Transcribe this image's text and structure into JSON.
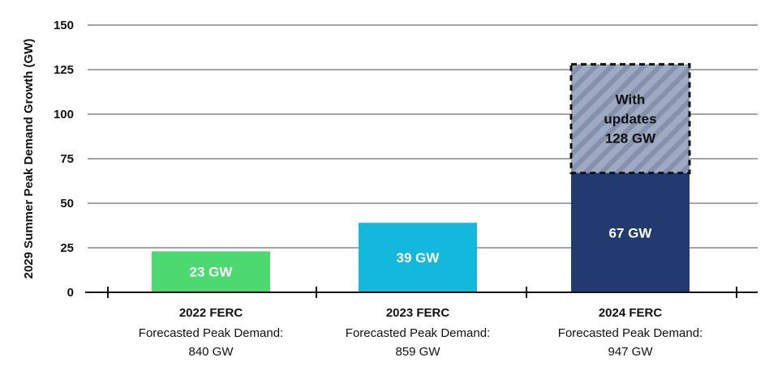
{
  "chart_data": {
    "type": "bar",
    "ylabel": "2029 Summer Peak Demand Growth (GW)",
    "ylim": [
      0,
      150
    ],
    "yticks": [
      0,
      25,
      50,
      75,
      100,
      125,
      150
    ],
    "grid": true,
    "categories": [
      {
        "title": "2022 FERC",
        "line2": "Forecasted Peak Demand:",
        "line3": "840 GW"
      },
      {
        "title": "2023 FERC",
        "line2": "Forecasted Peak Demand:",
        "line3": "859 GW"
      },
      {
        "title": "2024 FERC",
        "line2": "Forecasted Peak Demand:",
        "line3": "947 GW"
      }
    ],
    "bars": [
      {
        "value": 23,
        "label": "23 GW",
        "color": "#4cd96f",
        "label_color": "#ffffff"
      },
      {
        "value": 39,
        "label": "39 GW",
        "color": "#12b9dc",
        "label_color": "#ffffff"
      },
      {
        "value": 67,
        "label": "67 GW",
        "color": "#223a70",
        "label_color": "#ffffff",
        "update": {
          "value": 128,
          "lines": [
            "With",
            "updates",
            "128 GW"
          ],
          "color": "#9ea9c2",
          "hatch_color": "#8591ad",
          "label_color": "#111111"
        }
      }
    ]
  }
}
